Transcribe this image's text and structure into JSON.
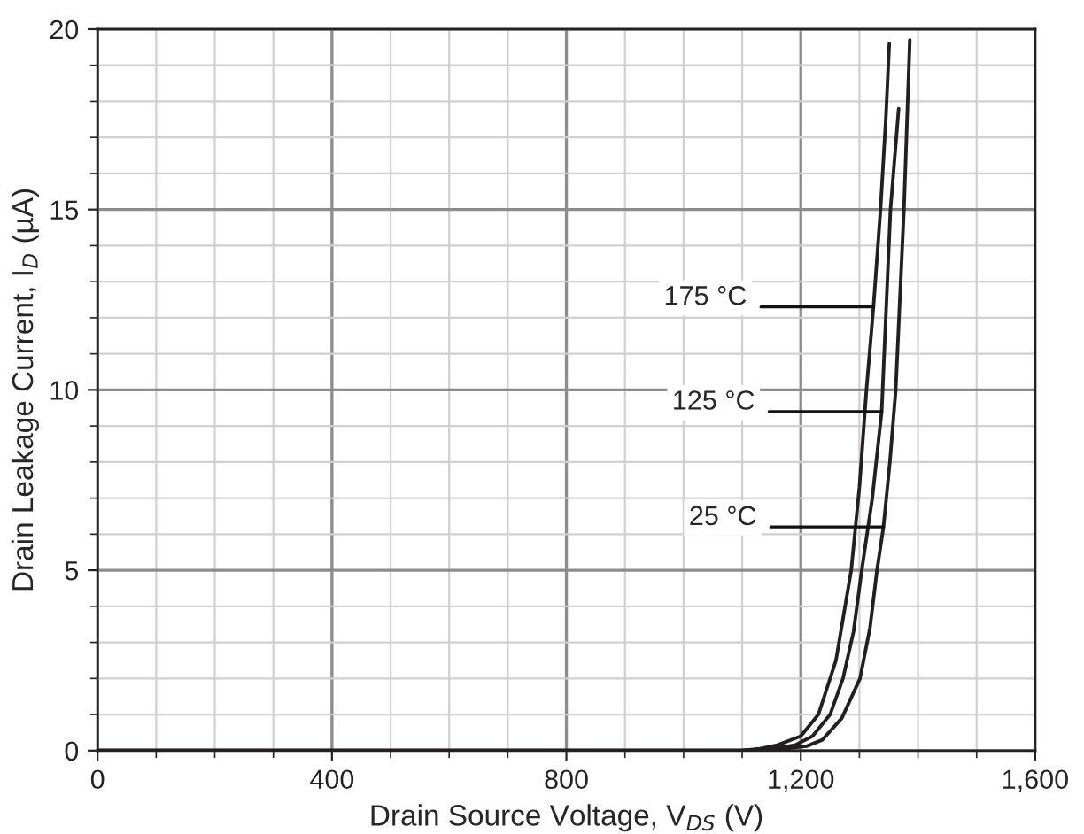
{
  "chart_data": {
    "type": "line",
    "xlabel": "Drain Source Voltage, V$_{DS}$ (V)",
    "ylabel": "Drain Leakage Current, I$_{D}$ (µA)",
    "series": [
      {
        "color": "#231f20",
        "x": [
          0,
          400,
          800,
          1100,
          1130,
          1160,
          1200,
          1230,
          1260,
          1286,
          1300,
          1312,
          1324,
          1336,
          1345,
          1351
        ],
        "values": [
          0,
          0,
          0,
          0,
          0.05,
          0.15,
          0.4,
          1,
          2.5,
          5,
          7.3,
          10,
          12.3,
          15,
          17.5,
          19.6
        ]
      },
      {
        "color": "#231f20",
        "x": [
          0,
          400,
          800,
          1100,
          1150,
          1190,
          1220,
          1250,
          1272,
          1290,
          1304,
          1322,
          1338,
          1353,
          1367
        ],
        "values": [
          0,
          0,
          0,
          0,
          0.05,
          0.15,
          0.4,
          1,
          2,
          3.3,
          5,
          7,
          9.4,
          15,
          17.8
        ]
      },
      {
        "color": "#231f20",
        "x": [
          0,
          400,
          800,
          1100,
          1170,
          1210,
          1237,
          1270,
          1301,
          1318,
          1330,
          1341,
          1352,
          1362,
          1376,
          1386
        ],
        "values": [
          0,
          0,
          0,
          0,
          0.05,
          0.12,
          0.3,
          0.9,
          2,
          3.4,
          5,
          6.2,
          8,
          10,
          15,
          19.7
        ]
      }
    ],
    "annotations": [
      {
        "text": "175 °C",
        "x": 1324,
        "y": 12.3
      },
      {
        "text": "125 °C",
        "x": 1338,
        "y": 9.4
      },
      {
        "text": "25 °C",
        "x": 1341,
        "y": 6.2
      }
    ],
    "xlim": [
      0,
      1600
    ],
    "ylim": [
      0,
      20
    ],
    "xticks": [
      0,
      400,
      800,
      {
        "value": 1200,
        "label": "1,200"
      },
      {
        "value": 1600,
        "label": "1,600"
      }
    ],
    "yticks": [
      0,
      5,
      10,
      15,
      20
    ],
    "grid": true,
    "legend": false,
    "marker": "none",
    "line_style": "solid"
  }
}
